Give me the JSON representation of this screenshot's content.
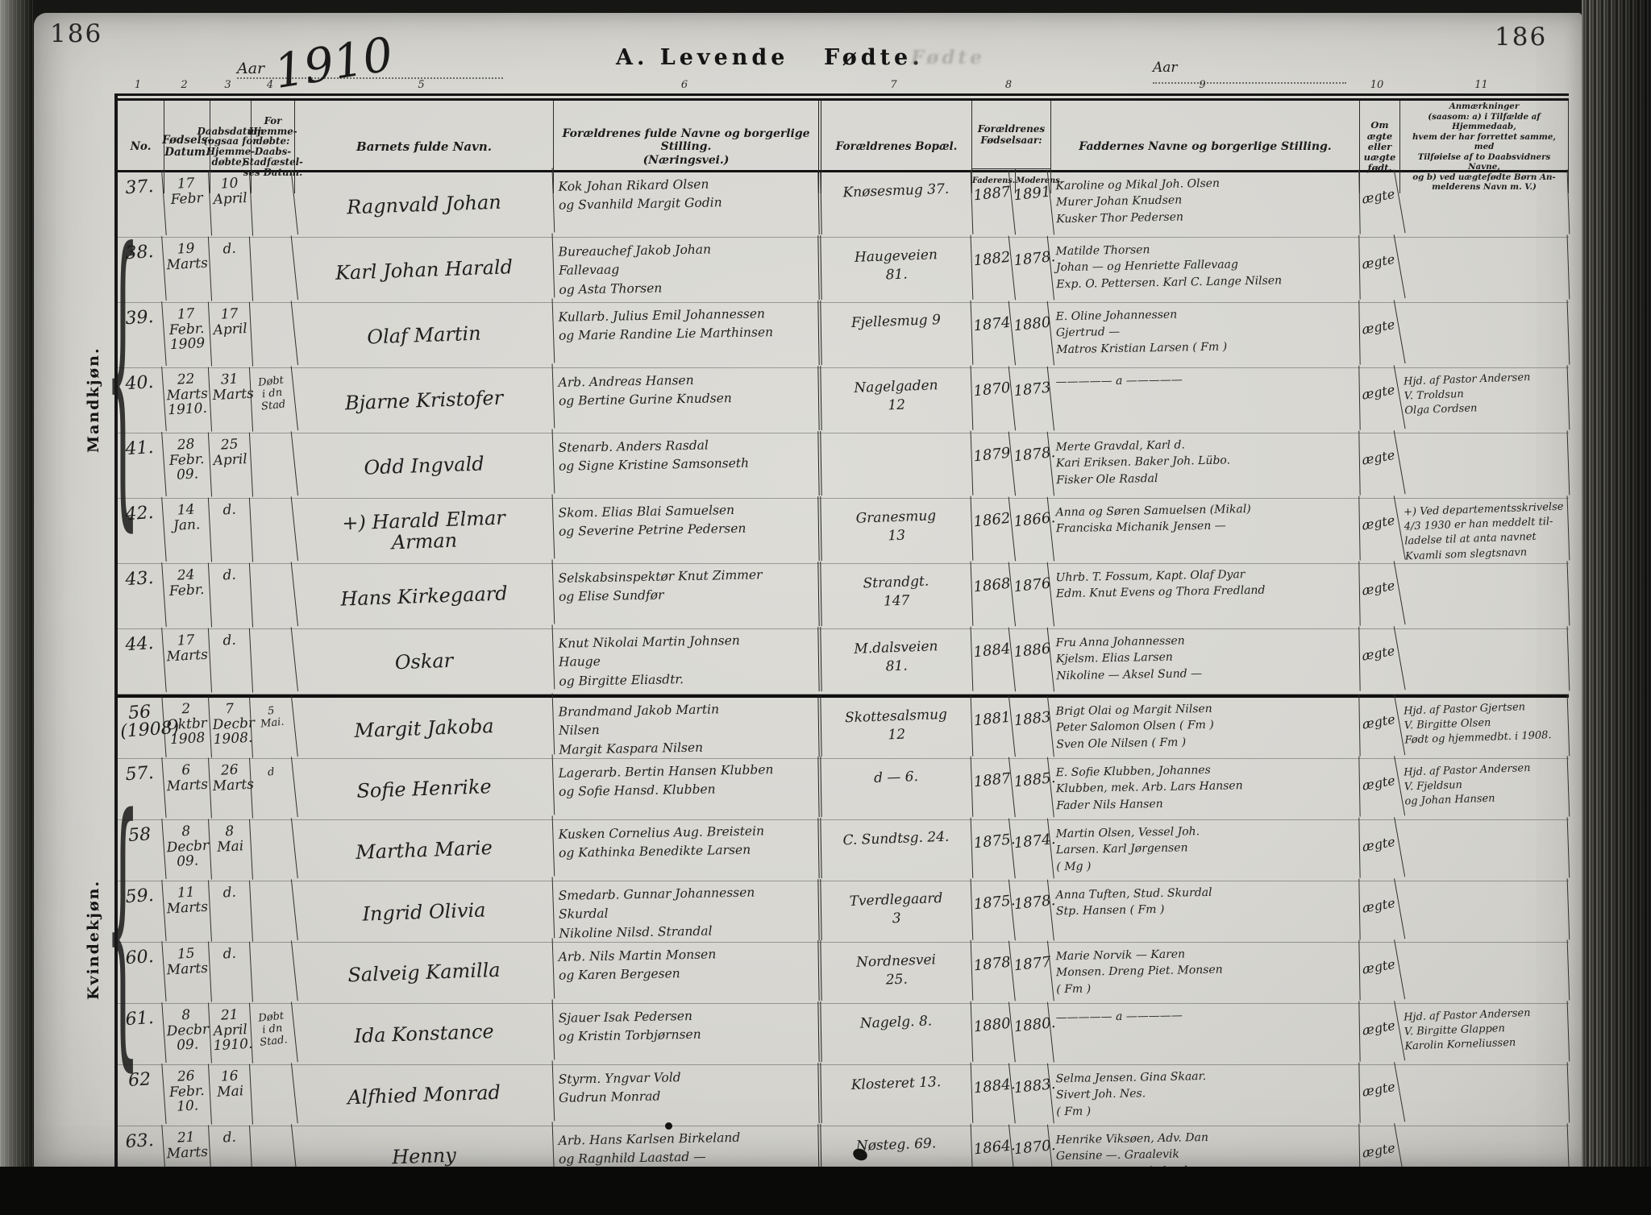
{
  "page": {
    "number_left": "186",
    "number_right": "186",
    "year_label": "Aar",
    "year_value": "1910",
    "year_label_right": "Aar",
    "section_title_left": "A.  Levende",
    "section_title_right": "Fødte.",
    "ghost_text": "Fødte"
  },
  "table": {
    "column_numbers": [
      "1",
      "2",
      "3",
      "4",
      "5",
      "6",
      "7",
      "8",
      "9",
      "10",
      "11"
    ],
    "headers": {
      "no": "No.",
      "birth": "Fødsels-\nDatum.",
      "baptism": "Daabsdatum\n(ogsaa for\nHjemme-\ndøbte).",
      "home": "For Hjemme-\ndøbte:\nDaabs-\nStadfæstel-\nses Datum.",
      "name": "Barnets fulde Navn.",
      "parents": "Forældrenes fulde Navne og borgerlige Stilling.\n(Næringsvei.)",
      "residence": "Forældrenes Bopæl.",
      "birth_years": "Forældrenes\nFødselsaar:",
      "father": "Faderens.",
      "mother": "Moderens.",
      "godparents": "Faddernes Navne og borgerlige Stilling.",
      "legitimate": "Om ægte\neller\nuægte\nfødt.",
      "remarks": "Anmærkninger\n(saasom: a) i Tilfælde af Hjemmedaab,\nhvem der har forrettet samme, med\nTilføielse af to Daabsvidners Navne,\nog b) ved uægtefødte Børn An-\nmelderens Navn m. V.)"
    }
  },
  "sections": [
    {
      "gender_label": "Mandkjøn.",
      "rows": [
        {
          "no": "37.",
          "birth": "17\nFebr",
          "baptism": "10\nApril",
          "home": "",
          "name": "Ragnvald Johan",
          "parents": "Kok Johan Rikard Olsen\nog Svanhild Margit Godin",
          "residence": "Knøsesmug 37.",
          "father_year": "1887",
          "mother_year": "1891",
          "godparents": "Karoline og Mikal Joh. Olsen\nMurer Johan Knudsen\nKusker Thor Pedersen",
          "legitimate": "ægte",
          "remarks": ""
        },
        {
          "no": "38.",
          "birth": "19\nMarts",
          "baptism": "d.",
          "home": "",
          "name": "Karl Johan Harald",
          "parents": "Bureauchef Jakob Johan\nFallevaag\nog Asta Thorsen",
          "residence": "Haugeveien\n81.",
          "father_year": "1882",
          "mother_year": "1878.",
          "godparents": "Matilde Thorsen\nJohan — og Henriette Fallevaag\nExp. O. Pettersen. Karl C. Lange Nilsen",
          "legitimate": "ægte",
          "remarks": ""
        },
        {
          "no": "39.",
          "birth": "17\nFebr.\n1909",
          "baptism": "17\nApril",
          "home": "",
          "name": "Olaf Martin",
          "parents": "Kullarb. Julius Emil Johannessen\nog Marie Randine Lie Marthinsen",
          "residence": "Fjellesmug 9",
          "father_year": "1874",
          "mother_year": "1880",
          "godparents": "E. Oline Johannessen\nGjertrud —\nMatros Kristian Larsen ( Fm )",
          "legitimate": "ægte",
          "remarks": ""
        },
        {
          "no": "40.",
          "birth": "22\nMarts\n1910.",
          "baptism": "31\nMarts",
          "home": "Døbt\ni dn\nStad",
          "name": "Bjarne Kristofer",
          "parents": "Arb. Andreas Hansen\nog Bertine Gurine Knudsen",
          "residence": "Nagelgaden\n12",
          "father_year": "1870",
          "mother_year": "1873",
          "godparents": "—————  a  —————",
          "legitimate": "ægte",
          "remarks": "Hjd. af Pastor Andersen\nV. Troldsun\nOlga Cordsen"
        },
        {
          "no": "41.",
          "birth": "28\nFebr.\n09.",
          "baptism": "25\nApril",
          "home": "",
          "name": "Odd Ingvald",
          "parents": "Stenarb. Anders Rasdal\nog Signe Kristine Samsonseth",
          "residence": "",
          "father_year": "1879",
          "mother_year": "1878.",
          "godparents": "Merte Gravdal, Karl d.\nKari Eriksen. Baker Joh. Lübo.\nFisker Ole Rasdal",
          "legitimate": "ægte",
          "remarks": ""
        },
        {
          "no": "42.",
          "birth": "14\nJan.",
          "baptism": "d.",
          "home": "",
          "name": "+) Harald Elmar\nArman",
          "parents": "Skom. Elias Blai Samuelsen\nog Severine Petrine Pedersen",
          "residence": "Granesmug\n13",
          "father_year": "1862",
          "mother_year": "1866.",
          "godparents": "Anna og Søren Samuelsen (Mikal)\nFranciska Michanik Jensen —",
          "legitimate": "ægte",
          "remarks": "+) Ved departementsskrivelse\n4/3 1930 er han meddelt til-\nladelse til at anta navnet\nKvamli som slegtsnavn"
        },
        {
          "no": "43.",
          "birth": "24\nFebr.",
          "baptism": "d.",
          "home": "",
          "name": "Hans Kirkegaard",
          "parents": "Selskabsinspektør Knut Zimmer\nog Elise Sundfør",
          "residence": "Strandgt.\n147",
          "father_year": "1868",
          "mother_year": "1876",
          "godparents": "Uhrb. T. Fossum, Kapt. Olaf Dyar\nEdm. Knut Evens og Thora Fredland",
          "legitimate": "ægte",
          "remarks": ""
        },
        {
          "no": "44.",
          "birth": "17\nMarts",
          "baptism": "d.",
          "home": "",
          "name": "Oskar",
          "parents": "Knut Nikolai Martin Johnsen\nHauge\nog Birgitte Eliasdtr.",
          "residence": "M.dalsveien\n81.",
          "father_year": "1884",
          "mother_year": "1886",
          "godparents": "Fru Anna Johannessen\nKjelsm. Elias Larsen\nNikoline — Aksel Sund —",
          "legitimate": "ægte",
          "remarks": ""
        }
      ]
    },
    {
      "gender_label": "Kvindekjøn.",
      "rows": [
        {
          "no": "56\n(1908)",
          "birth": "2\nOktbr\n1908",
          "baptism": "7\nDecbr\n1908.",
          "home": "5\nMai.",
          "name": "Margit Jakoba",
          "parents": "Brandmand Jakob Martin\nNilsen\nMargit Kaspara Nilsen",
          "residence": "Skottesalsmug\n12",
          "father_year": "1881",
          "mother_year": "1883",
          "godparents": "Brigt Olai og Margit Nilsen\nPeter Salomon Olsen ( Fm )\nSven Ole Nilsen ( Fm )",
          "legitimate": "ægte",
          "remarks": "Hjd. af Pastor Gjertsen\nV. Birgitte Olsen\nFødt og hjemmedbt. i 1908."
        },
        {
          "no": "57.",
          "birth": "6\nMarts",
          "baptism": "26\nMarts",
          "home": "d",
          "name": "Sofie Henrike",
          "parents": "Lagerarb. Bertin Hansen Klubben\nog Sofie Hansd. Klubben",
          "residence": "d  —  6.",
          "father_year": "1887",
          "mother_year": "1885.",
          "godparents": "E. Sofie Klubben, Johannes\nKlubben, mek. Arb. Lars Hansen\nFader Nils Hansen",
          "legitimate": "ægte",
          "remarks": "Hjd. af Pastor Andersen\nV. Fjeldsun\nog Johan Hansen"
        },
        {
          "no": "58",
          "birth": "8\nDecbr\n09.",
          "baptism": "8\nMai",
          "home": "",
          "name": "Martha Marie",
          "parents": "Kusken Cornelius Aug. Breistein\nog Kathinka Benedikte Larsen",
          "residence": "C. Sundtsg. 24.",
          "father_year": "1875.",
          "mother_year": "1874.",
          "godparents": "Martin Olsen, Vessel Joh.\nLarsen. Karl Jørgensen\n( Mg )",
          "legitimate": "ægte",
          "remarks": ""
        },
        {
          "no": "59.",
          "birth": "11\nMarts",
          "baptism": "d.",
          "home": "",
          "name": "Ingrid Olivia",
          "parents": "Smedarb. Gunnar Johannessen\nSkurdal\nNikoline Nilsd. Strandal",
          "residence": "Tverdlegaard\n3",
          "father_year": "1875.",
          "mother_year": "1878.",
          "godparents": "Anna Tuften, Stud. Skurdal\nStp. Hansen ( Fm )",
          "legitimate": "ægte",
          "remarks": ""
        },
        {
          "no": "60.",
          "birth": "15\nMarts",
          "baptism": "d.",
          "home": "",
          "name": "Salveig Kamilla",
          "parents": "Arb. Nils Martin Monsen\nog Karen Bergesen",
          "residence": "Nordnesvei\n25.",
          "father_year": "1878",
          "mother_year": "1877",
          "godparents": "Marie Norvik — Karen\nMonsen. Dreng Piet. Monsen\n( Fm )",
          "legitimate": "ægte",
          "remarks": ""
        },
        {
          "no": "61.",
          "birth": "8\nDecbr\n09.",
          "baptism": "21\nApril\n1910.",
          "home": "Døbt\ni dn\nStad.",
          "name": "Ida Konstance",
          "parents": "Sjauer Isak Pedersen\nog Kristin Torbjørnsen",
          "residence": "Nagelg. 8.",
          "father_year": "1880",
          "mother_year": "1880.",
          "godparents": "—————  a  —————",
          "legitimate": "ægte",
          "remarks": "Hjd. af Pastor Andersen\nV. Birgitte Glappen\nKarolin Korneliussen"
        },
        {
          "no": "62",
          "birth": "26\nFebr.\n10.",
          "baptism": "16\nMai",
          "home": "",
          "name": "Alfhied Monrad",
          "parents": "Styrm. Yngvar Vold\nGudrun Monrad",
          "residence": "Klosteret 13.",
          "father_year": "1884.",
          "mother_year": "1883.",
          "godparents": "Selma Jensen. Gina Skaar.\nSivert Joh. Nes.\n( Fm )",
          "legitimate": "ægte",
          "remarks": ""
        },
        {
          "no": "63.",
          "birth": "21\nMarts",
          "baptism": "d.",
          "home": "",
          "name": "Henny",
          "parents": "Arb. Hans Karlsen Birkeland\nog Ragnhild Laastad —",
          "residence": "Nøsteg. 69.",
          "father_year": "1864.",
          "mother_year": "1870.",
          "godparents": "Henrike Viksøen, Adv. Dan\nGensine —. Graalevik\nGert —. Karl Birkeland.",
          "legitimate": "ægte",
          "remarks": ""
        }
      ]
    }
  ]
}
